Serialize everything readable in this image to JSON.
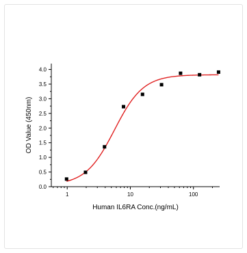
{
  "chart_data": {
    "type": "scatter",
    "xlabel": "Human IL6RA Conc.(ng/mL)",
    "ylabel": "OD Value (450nm)",
    "xscale": "log",
    "xlim": [
      0.56,
      260
    ],
    "ylim": [
      0,
      4.2
    ],
    "x_ticks": [
      1,
      10,
      100
    ],
    "x_tick_labels": [
      "1",
      "10",
      "100"
    ],
    "y_ticks": [
      0.0,
      0.5,
      1.0,
      1.5,
      2.0,
      2.5,
      3.0,
      3.5,
      4.0
    ],
    "y_tick_labels": [
      "0.0",
      "0.5",
      "1.0",
      "1.5",
      "2.0",
      "2.5",
      "3.0",
      "3.5",
      "4.0"
    ],
    "grid": false,
    "series": [
      {
        "kind": "points",
        "color": "#000000",
        "x": [
          0.977,
          1.95,
          3.9,
          7.8,
          15.6,
          31.25,
          62.5,
          125,
          250
        ],
        "y": [
          0.26,
          0.49,
          1.36,
          2.73,
          3.15,
          3.48,
          3.87,
          3.82,
          3.91
        ]
      },
      {
        "kind": "fit",
        "color": "#e02020",
        "model": "4PL",
        "bottom": 0.05,
        "top": 3.82,
        "ec50": 5.6,
        "hill": 1.9,
        "x_range": [
          0.977,
          250
        ]
      }
    ]
  }
}
